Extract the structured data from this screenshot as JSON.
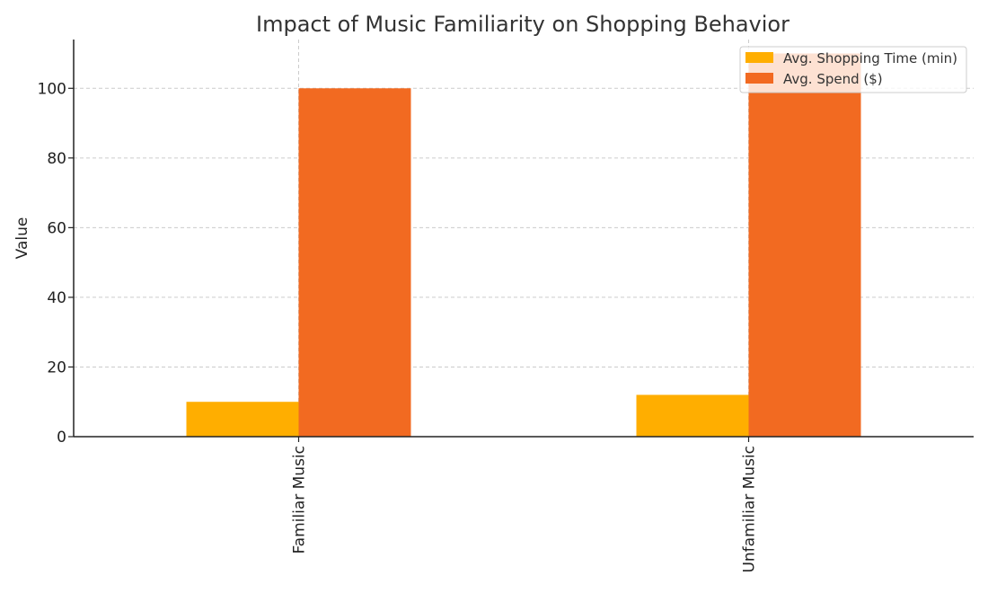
{
  "chart_data": {
    "type": "bar",
    "title": "Impact of Music Familiarity on Shopping Behavior",
    "xlabel": "",
    "ylabel": "Value",
    "categories": [
      "Familiar Music",
      "Unfamiliar Music"
    ],
    "series": [
      {
        "name": "Avg. Shopping Time (min)",
        "values": [
          10,
          12
        ],
        "color": "#FFAE00"
      },
      {
        "name": "Avg. Spend ($)",
        "values": [
          100,
          110
        ],
        "color": "#F26A21"
      }
    ],
    "ylim": [
      0,
      114
    ],
    "yticks": [
      0,
      20,
      40,
      60,
      80,
      100
    ],
    "grid": true,
    "legend_position": "top-right"
  }
}
